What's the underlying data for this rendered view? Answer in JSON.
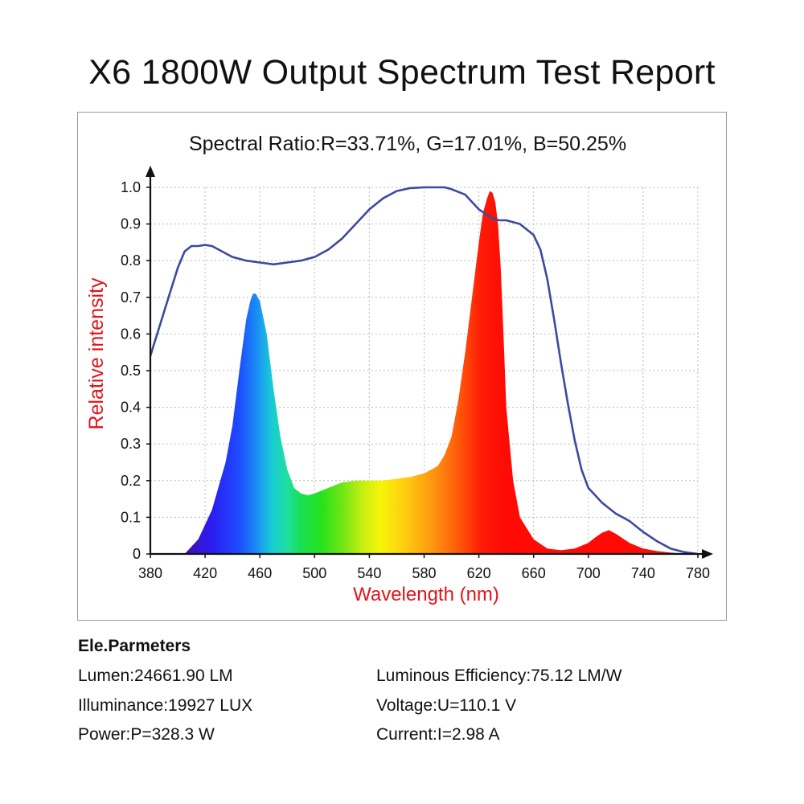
{
  "title": "X6 1800W Output Spectrum Test Report",
  "chart_data": {
    "type": "area",
    "subtitle": "Spectral Ratio:R=33.71%, G=17.01%, B=50.25%",
    "xlabel": "Wavelength (nm)",
    "ylabel": "Relative intensity",
    "xlim": [
      380,
      780
    ],
    "ylim": [
      0,
      1.0
    ],
    "x_ticks": [
      "380",
      "420",
      "460",
      "500",
      "540",
      "580",
      "620",
      "660",
      "700",
      "740",
      "780"
    ],
    "y_ticks": [
      "0",
      "0.1",
      "0.2",
      "0.3",
      "0.4",
      "0.5",
      "0.6",
      "0.7",
      "0.8",
      "0.9",
      "1.0"
    ],
    "grid": true,
    "series": [
      {
        "style": "filled spectrum",
        "color": "rainbow",
        "x": [
          405,
          415,
          425,
          435,
          440,
          445,
          450,
          453,
          455,
          457,
          460,
          465,
          470,
          475,
          480,
          485,
          490,
          495,
          500,
          510,
          520,
          530,
          540,
          550,
          560,
          570,
          580,
          590,
          595,
          600,
          605,
          610,
          615,
          620,
          623,
          626,
          628,
          630,
          632,
          634,
          636,
          638,
          640,
          645,
          650,
          660,
          670,
          680,
          690,
          700,
          705,
          710,
          715,
          720,
          730,
          740,
          750,
          760,
          770,
          780
        ],
        "y": [
          0.0,
          0.04,
          0.12,
          0.25,
          0.35,
          0.5,
          0.64,
          0.69,
          0.71,
          0.71,
          0.69,
          0.6,
          0.45,
          0.32,
          0.23,
          0.18,
          0.165,
          0.16,
          0.165,
          0.18,
          0.195,
          0.2,
          0.2,
          0.2,
          0.205,
          0.21,
          0.22,
          0.24,
          0.27,
          0.32,
          0.42,
          0.55,
          0.7,
          0.85,
          0.93,
          0.97,
          0.99,
          0.985,
          0.96,
          0.9,
          0.78,
          0.6,
          0.4,
          0.2,
          0.1,
          0.04,
          0.015,
          0.01,
          0.015,
          0.03,
          0.045,
          0.058,
          0.065,
          0.055,
          0.03,
          0.015,
          0.008,
          0.004,
          0.001,
          0.0
        ]
      },
      {
        "style": "line",
        "color": "#3b4a9e",
        "x": [
          380,
          385,
          390,
          395,
          400,
          405,
          410,
          415,
          420,
          425,
          430,
          435,
          440,
          445,
          450,
          460,
          470,
          480,
          490,
          500,
          510,
          520,
          530,
          540,
          550,
          560,
          570,
          580,
          590,
          595,
          600,
          610,
          620,
          630,
          635,
          640,
          645,
          650,
          660,
          665,
          670,
          675,
          680,
          685,
          690,
          695,
          700,
          705,
          710,
          715,
          720,
          725,
          730,
          740,
          750,
          760,
          770,
          780
        ],
        "y": [
          0.54,
          0.6,
          0.66,
          0.72,
          0.78,
          0.825,
          0.84,
          0.84,
          0.843,
          0.84,
          0.83,
          0.82,
          0.81,
          0.805,
          0.8,
          0.795,
          0.79,
          0.795,
          0.8,
          0.81,
          0.83,
          0.86,
          0.9,
          0.94,
          0.97,
          0.99,
          0.998,
          1.0,
          1.0,
          1.0,
          0.995,
          0.98,
          0.94,
          0.915,
          0.91,
          0.91,
          0.905,
          0.9,
          0.87,
          0.83,
          0.75,
          0.64,
          0.52,
          0.41,
          0.31,
          0.23,
          0.18,
          0.16,
          0.14,
          0.125,
          0.11,
          0.1,
          0.09,
          0.06,
          0.035,
          0.015,
          0.005,
          0.0
        ]
      }
    ]
  },
  "params": {
    "heading": "Ele.Parmeters",
    "lumen": "Lumen:24661.90 LM",
    "illuminance": "Illuminance:19927 LUX",
    "power": "Power:P=328.3 W",
    "efficiency": "Luminous Efficiency:75.12 LM/W",
    "voltage": "Voltage:U=110.1 V",
    "current": "Current:I=2.98 A"
  }
}
